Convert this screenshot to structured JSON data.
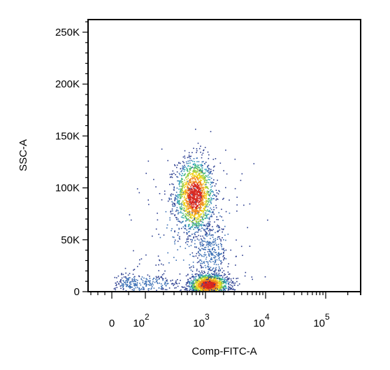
{
  "chart_data": {
    "type": "scatter",
    "title": "",
    "xlabel": "Comp-FITC-A",
    "ylabel": "SSC-A",
    "x_scale": "biexponential",
    "xlim": [
      -300,
      300000
    ],
    "ylim": [
      0,
      262144
    ],
    "grid": false,
    "legend": "none",
    "density_colormap": [
      "#2b3d8f",
      "#3a6fb5",
      "#2fa0b8",
      "#3fb77a",
      "#9ccc3c",
      "#f2d21b",
      "#f08a1c",
      "#d7261e"
    ],
    "x_tick_labels": [
      {
        "value": 0,
        "base": "0",
        "exp": ""
      },
      {
        "value": 100,
        "base": "10",
        "exp": "2"
      },
      {
        "value": 1000,
        "base": "10",
        "exp": "3"
      },
      {
        "value": 10000,
        "base": "10",
        "exp": "4"
      },
      {
        "value": 100000,
        "base": "10",
        "exp": "5"
      }
    ],
    "y_tick_labels": [
      {
        "value": 0,
        "label": "0"
      },
      {
        "value": 50000,
        "label": "50K"
      },
      {
        "value": 100000,
        "label": "100K"
      },
      {
        "value": 150000,
        "label": "150K"
      },
      {
        "value": 200000,
        "label": "200K"
      },
      {
        "value": 250000,
        "label": "250K"
      }
    ],
    "populations": [
      {
        "name_hint": "main",
        "x_center": 650,
        "x_log_spread": 0.16,
        "y_center": 93000,
        "y_spread": 18000,
        "count": 1500
      },
      {
        "name_hint": "low-ssc",
        "x_center": 1100,
        "x_log_spread": 0.17,
        "y_center": 7000,
        "y_spread": 5500,
        "count": 1300
      },
      {
        "name_hint": "bridge",
        "x_center": 1200,
        "x_log_spread": 0.14,
        "y_center": 38000,
        "y_spread": 14000,
        "count": 300
      },
      {
        "name_hint": "dim-low",
        "x_center": 80,
        "x_log_spread": 0.35,
        "y_center": 8000,
        "y_spread": 5000,
        "count": 280
      },
      {
        "name_hint": "sparse",
        "x_center": 700,
        "x_log_spread": 0.45,
        "y_center": 60000,
        "y_spread": 40000,
        "count": 250
      }
    ]
  }
}
